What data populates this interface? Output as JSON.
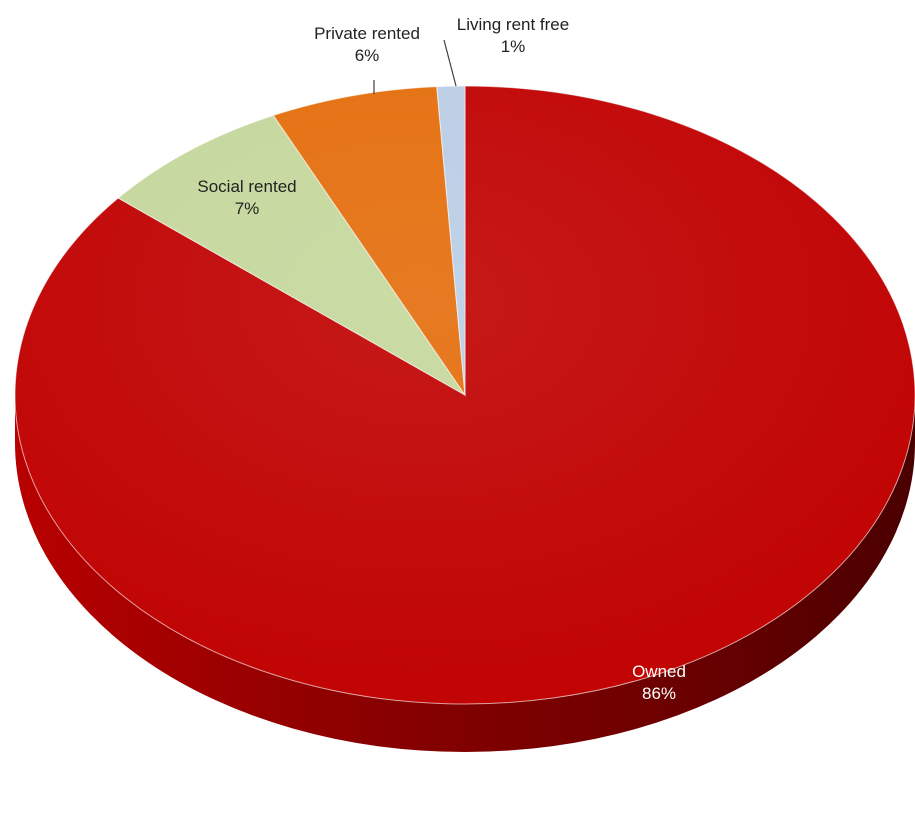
{
  "chart_data": {
    "type": "pie",
    "style": "3d",
    "legend": "none",
    "slices": [
      {
        "label": "Owned",
        "value": 86,
        "value_label": "86%",
        "color": "#c00000"
      },
      {
        "label": "Social rented",
        "value": 7,
        "value_label": "7%",
        "color": "#c4d79b"
      },
      {
        "label": "Private rented",
        "value": 6,
        "value_label": "6%",
        "color": "#e46c0a"
      },
      {
        "label": "Living rent free",
        "value": 1,
        "value_label": "1%",
        "color": "#b9cde5"
      }
    ]
  }
}
